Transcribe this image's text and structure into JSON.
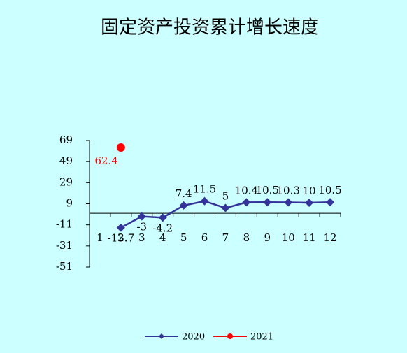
{
  "chart_data": {
    "type": "line",
    "title": "固定资产投资累计增长速度",
    "categories": [
      "1",
      "2",
      "3",
      "4",
      "5",
      "6",
      "7",
      "8",
      "9",
      "10",
      "11",
      "12"
    ],
    "series": [
      {
        "name": "2020",
        "color": "#333399",
        "values": [
          null,
          -13.7,
          -3,
          -4.2,
          7.4,
          11.5,
          5,
          10.4,
          10.5,
          10.3,
          10,
          10.5
        ]
      },
      {
        "name": "2021",
        "color": "#ff0000",
        "values": [
          null,
          62.4,
          null,
          null,
          null,
          null,
          null,
          null,
          null,
          null,
          null,
          null
        ]
      }
    ],
    "ylim": [
      -51,
      69
    ],
    "yticks": [
      -51,
      -31,
      -11,
      9,
      29,
      49,
      69
    ]
  }
}
